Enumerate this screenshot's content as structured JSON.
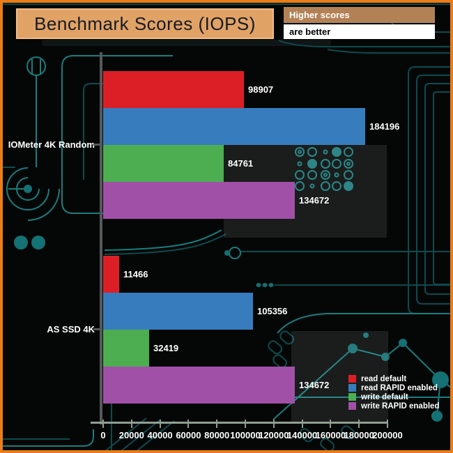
{
  "header": {
    "title": "Benchmark Scores (IOPS)",
    "note_line1": "Higher scores",
    "note_line2": "are better"
  },
  "chart_data": {
    "type": "bar",
    "orientation": "horizontal",
    "title": "Benchmark Scores (IOPS)",
    "categories": [
      "IOMeter 4K Random",
      "AS SSD 4K"
    ],
    "series": [
      {
        "name": "read default",
        "color": "#dc1f26",
        "values": [
          98907,
          11466
        ]
      },
      {
        "name": "read RAPID enabled",
        "color": "#377dbe",
        "values": [
          184196,
          105356
        ]
      },
      {
        "name": "write default",
        "color": "#4cae51",
        "values": [
          84761,
          32419
        ]
      },
      {
        "name": "write RAPID enabled",
        "color": "#a150a8",
        "values": [
          134672,
          134672
        ]
      }
    ],
    "xlim": [
      0,
      200000
    ],
    "x_ticks": [
      0,
      20000,
      40000,
      60000,
      80000,
      100000,
      120000,
      140000,
      160000,
      180000,
      200000
    ],
    "grid": false,
    "legend_position": "bottom-right",
    "value_labels": true
  },
  "colors": {
    "frame": "#ea7d18",
    "title_bg": "#e1a266",
    "title_border": "#f0bd8b",
    "note1_bg": "#b38156",
    "background": "#050706",
    "circuit_bright": "#187e80",
    "circuit_dim": "#0d4b4f",
    "axis_vertical": "#55595a",
    "axis_horizontal": "#8f9e93"
  }
}
